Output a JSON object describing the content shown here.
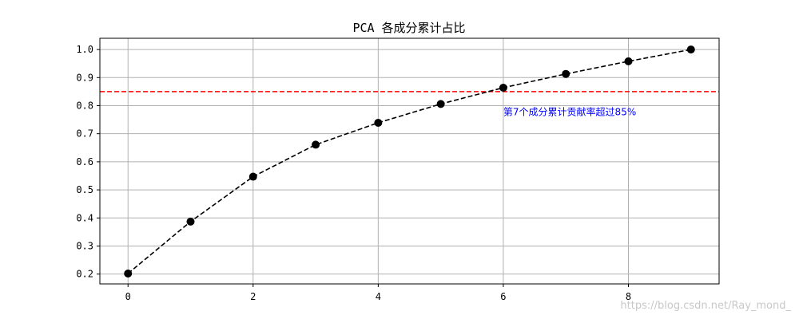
{
  "chart_data": {
    "type": "line",
    "title": "PCA 各成分累计占比",
    "xlabel": "",
    "ylabel": "",
    "x": [
      0,
      1,
      2,
      3,
      4,
      5,
      6,
      7,
      8,
      9
    ],
    "series": [
      {
        "values": [
          0.202,
          0.387,
          0.547,
          0.661,
          0.739,
          0.806,
          0.864,
          0.913,
          0.958,
          1.0
        ],
        "color": "#000000",
        "line_style": "dashed",
        "marker": "circle"
      }
    ],
    "xlim": [
      -0.45,
      9.45
    ],
    "ylim": [
      0.165,
      1.04
    ],
    "xticks": [
      0,
      2,
      4,
      6,
      8
    ],
    "xtick_labels": [
      "0",
      "2",
      "4",
      "6",
      "8"
    ],
    "yticks": [
      0.2,
      0.3,
      0.4,
      0.5,
      0.6,
      0.7,
      0.8,
      0.9,
      1.0
    ],
    "ytick_labels": [
      "0.2",
      "0.3",
      "0.4",
      "0.5",
      "0.6",
      "0.7",
      "0.8",
      "0.9",
      "1.0"
    ],
    "grid": true,
    "reference_line": {
      "orientation": "horizontal",
      "y": 0.85,
      "color": "#ff0000",
      "line_style": "dashed"
    },
    "annotations": [
      {
        "text": "第7个成分累计贡献率超过85%",
        "x": 6,
        "y": 0.78,
        "color": "#0000ff"
      }
    ]
  },
  "watermark": {
    "text": "https://blog.csdn.net/Ray_mond_",
    "color": "#c8c8c8"
  }
}
